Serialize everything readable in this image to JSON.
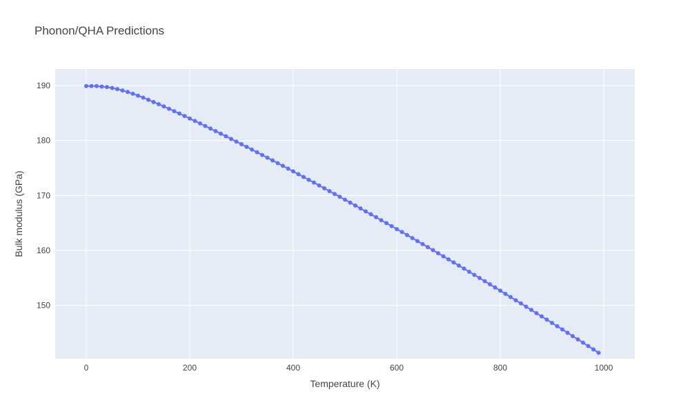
{
  "chart_data": {
    "type": "line",
    "title": "Phonon/QHA Predictions",
    "xlabel": "Temperature (K)",
    "ylabel": "Bulk modulus (GPa)",
    "xlim": [
      -60,
      1060
    ],
    "ylim": [
      140.3,
      193.0
    ],
    "xticks": [
      0,
      200,
      400,
      600,
      800,
      1000
    ],
    "yticks": [
      150,
      160,
      170,
      180,
      190
    ],
    "grid": true,
    "mode": "lines+markers",
    "series": [
      {
        "color": "#636efa",
        "x": [
          0,
          10,
          20,
          30,
          40,
          50,
          60,
          70,
          80,
          90,
          100,
          110,
          120,
          130,
          140,
          150,
          160,
          170,
          180,
          190,
          200,
          210,
          220,
          230,
          240,
          250,
          260,
          270,
          280,
          290,
          300,
          310,
          320,
          330,
          340,
          350,
          360,
          370,
          380,
          390,
          400,
          410,
          420,
          430,
          440,
          450,
          460,
          470,
          480,
          490,
          500,
          510,
          520,
          530,
          540,
          550,
          560,
          570,
          580,
          590,
          600,
          610,
          620,
          630,
          640,
          650,
          660,
          670,
          680,
          690,
          700,
          710,
          720,
          730,
          740,
          750,
          760,
          770,
          780,
          790,
          800,
          810,
          820,
          830,
          840,
          850,
          860,
          870,
          880,
          890,
          900,
          910,
          920,
          930,
          940,
          950,
          960,
          970,
          980,
          990
        ],
        "y": [
          189.9,
          189.9,
          189.9,
          189.8,
          189.7,
          189.55,
          189.35,
          189.1,
          188.82,
          188.5,
          188.15,
          187.8,
          187.4,
          187.0,
          186.6,
          186.2,
          185.77,
          185.33,
          184.9,
          184.45,
          184.0,
          183.55,
          183.1,
          182.63,
          182.17,
          181.7,
          181.23,
          180.76,
          180.28,
          179.8,
          179.32,
          178.84,
          178.35,
          177.86,
          177.37,
          176.88,
          176.38,
          175.88,
          175.38,
          174.88,
          174.38,
          173.87,
          173.36,
          172.85,
          172.34,
          171.83,
          171.31,
          170.79,
          170.27,
          169.75,
          169.23,
          168.7,
          168.17,
          167.64,
          167.11,
          166.58,
          166.05,
          165.51,
          164.97,
          164.43,
          163.89,
          163.35,
          162.81,
          162.26,
          161.71,
          161.16,
          160.61,
          160.06,
          159.5,
          158.94,
          158.38,
          157.82,
          157.26,
          156.7,
          156.13,
          155.56,
          154.99,
          154.42,
          153.85,
          153.27,
          152.69,
          152.11,
          151.53,
          150.95,
          150.37,
          149.78,
          149.19,
          148.6,
          148.01,
          147.42,
          146.83,
          146.23,
          145.63,
          145.03,
          144.43,
          143.83,
          143.23,
          142.62,
          142.01,
          141.4
        ]
      }
    ]
  }
}
